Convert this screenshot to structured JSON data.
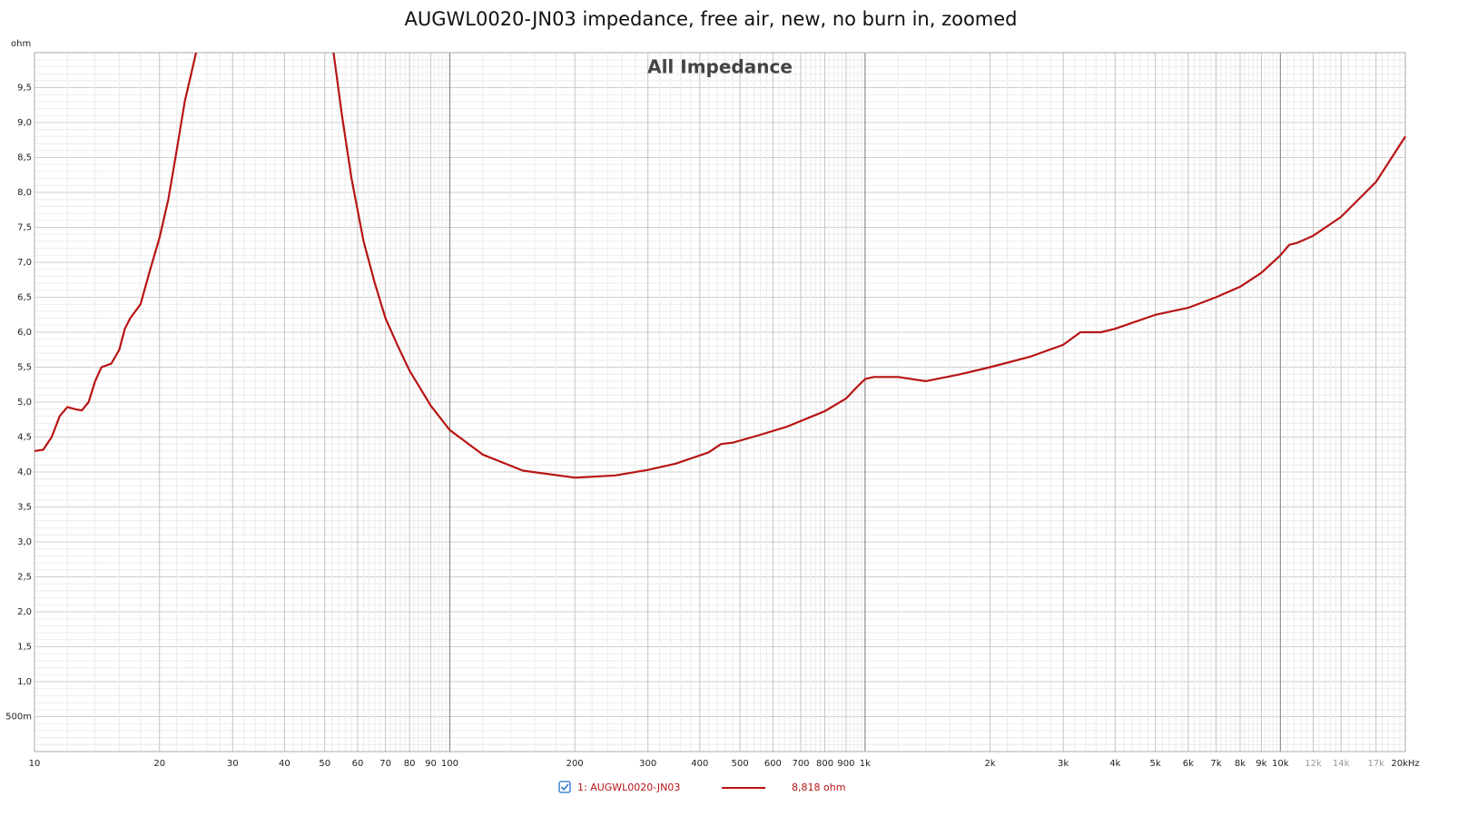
{
  "chart_data": {
    "type": "line",
    "title": "AUGWL0020-JN03 impedance, free air, new, no burn in, zoomed",
    "annotation": "All Impedance",
    "y_unit": "ohm",
    "xscale": "log",
    "grid": true,
    "xlim": [
      10,
      20000
    ],
    "ylim": [
      0,
      10
    ],
    "xticks": [
      10,
      20,
      30,
      40,
      50,
      60,
      70,
      80,
      90,
      100,
      200,
      300,
      400,
      500,
      600,
      700,
      800,
      900,
      {
        "value": 1000,
        "label": "1k"
      },
      {
        "value": 2000,
        "label": "2k"
      },
      {
        "value": 3000,
        "label": "3k"
      },
      {
        "value": 4000,
        "label": "4k"
      },
      {
        "value": 5000,
        "label": "5k"
      },
      {
        "value": 6000,
        "label": "6k"
      },
      {
        "value": 7000,
        "label": "7k"
      },
      {
        "value": 8000,
        "label": "8k"
      },
      {
        "value": 9000,
        "label": "9k"
      },
      {
        "value": 10000,
        "label": "10k"
      },
      {
        "value": 12000,
        "label": "12k"
      },
      {
        "value": 14000,
        "label": "14k"
      },
      {
        "value": 17000,
        "label": "17k"
      },
      {
        "value": 20000,
        "label": "20kHz"
      }
    ],
    "yticks": [
      {
        "value": 0.5,
        "label": "500m"
      },
      {
        "value": 1,
        "label": "1,0"
      },
      {
        "value": 1.5,
        "label": "1,5"
      },
      {
        "value": 2,
        "label": "2,0"
      },
      {
        "value": 2.5,
        "label": "2,5"
      },
      {
        "value": 3,
        "label": "3,0"
      },
      {
        "value": 3.5,
        "label": "3,5"
      },
      {
        "value": 4,
        "label": "4,0"
      },
      {
        "value": 4.5,
        "label": "4,5"
      },
      {
        "value": 5,
        "label": "5,0"
      },
      {
        "value": 5.5,
        "label": "5,5"
      },
      {
        "value": 6,
        "label": "6,0"
      },
      {
        "value": 6.5,
        "label": "6,5"
      },
      {
        "value": 7,
        "label": "7,0"
      },
      {
        "value": 7.5,
        "label": "7,5"
      },
      {
        "value": 8,
        "label": "8,0"
      },
      {
        "value": 8.5,
        "label": "8,5"
      },
      {
        "value": 9,
        "label": "9,0"
      },
      {
        "value": 9.5,
        "label": "9,5"
      }
    ],
    "x": [
      10,
      10.5,
      11,
      11.5,
      12,
      12.5,
      13,
      13.5,
      14,
      14.5,
      15.3,
      16,
      16.5,
      17,
      18,
      19,
      20,
      21,
      22,
      23,
      24.5,
      35,
      52.5,
      55,
      58,
      62,
      66,
      70,
      75,
      80,
      90,
      100,
      120,
      150,
      200,
      250,
      300,
      350,
      420,
      450,
      480,
      550,
      650,
      800,
      900,
      950,
      1000,
      1050,
      1200,
      1400,
      1700,
      2000,
      2500,
      3000,
      3300,
      3700,
      4000,
      5000,
      6000,
      7000,
      8000,
      9000,
      10000,
      10500,
      11000,
      12000,
      14000,
      17000,
      20000
    ],
    "series": [
      {
        "name": "1: AUGWL0020-JN03",
        "color": "#b81414",
        "values": [
          4.3,
          4.32,
          4.5,
          4.8,
          4.93,
          4.9,
          4.88,
          5.0,
          5.3,
          5.5,
          5.55,
          5.75,
          6.05,
          6.2,
          6.4,
          6.9,
          7.35,
          7.9,
          8.6,
          9.3,
          10,
          null,
          10,
          9.1,
          8.2,
          7.3,
          6.7,
          6.2,
          5.8,
          5.45,
          4.95,
          4.6,
          4.25,
          4.02,
          3.92,
          3.95,
          4.03,
          4.12,
          4.28,
          4.4,
          4.42,
          4.52,
          4.65,
          4.87,
          5.05,
          5.2,
          5.33,
          5.36,
          5.36,
          5.3,
          5.4,
          5.5,
          5.65,
          5.82,
          6.0,
          6.0,
          6.05,
          6.25,
          6.35,
          6.5,
          6.65,
          6.85,
          7.1,
          7.25,
          7.28,
          7.38,
          7.65,
          8.15,
          8.8
        ]
      }
    ],
    "legend_value": "8,818 ohm"
  }
}
